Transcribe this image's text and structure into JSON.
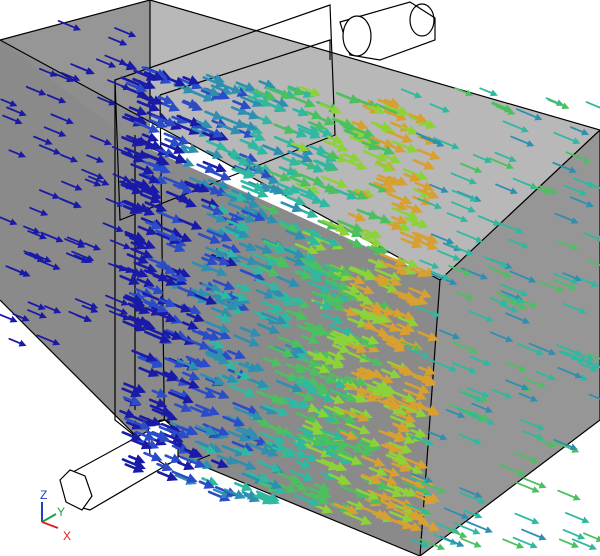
{
  "viewport": {
    "background": "#ffffff",
    "box_fill": "#8a8a8a",
    "edge_color": "#000000"
  },
  "vector_field": {
    "colormap": [
      "#1a1aa8",
      "#2a4cc8",
      "#2f8fb0",
      "#30b8a0",
      "#4cc060",
      "#8ed23a",
      "#d8a030"
    ],
    "low_color": "#1a1aa8",
    "high_color": "#d8a030"
  },
  "axis_triad": {
    "z_label": "Z",
    "y_label": "Y",
    "x_label": "X",
    "z_color": "#2040c0",
    "y_color": "#20a040",
    "x_color": "#e02020"
  }
}
